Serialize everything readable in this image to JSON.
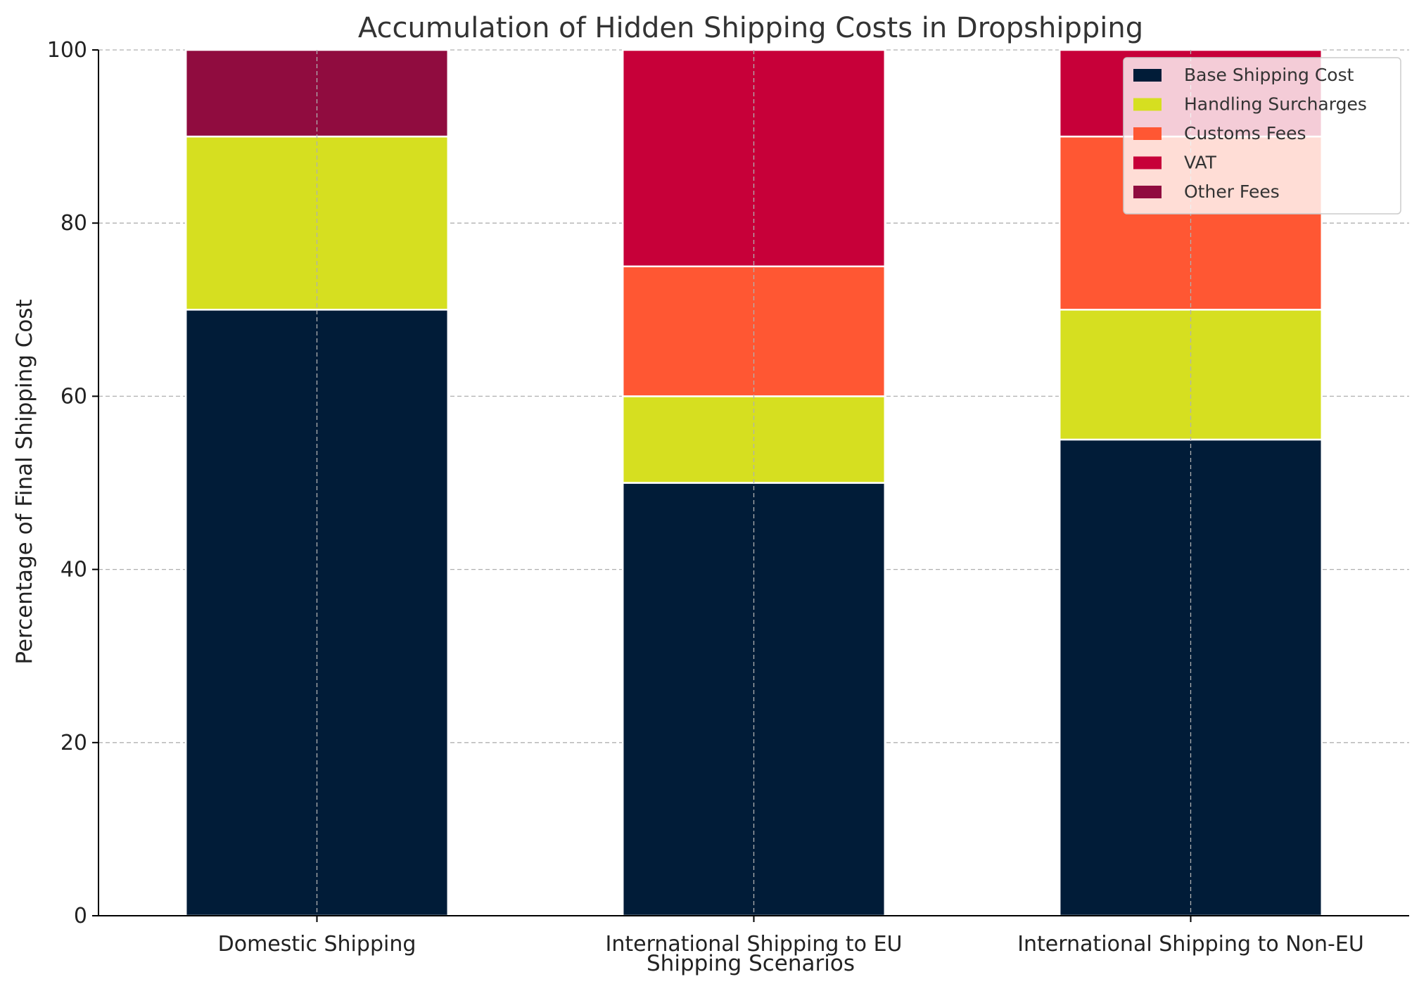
{
  "chart_data": {
    "type": "bar",
    "stacked": true,
    "title": "Accumulation of Hidden Shipping Costs in Dropshipping",
    "xlabel": "Shipping Scenarios",
    "ylabel": "Percentage of Final Shipping Cost",
    "ylim": [
      0,
      100
    ],
    "yticks": [
      0,
      20,
      40,
      60,
      80,
      100
    ],
    "grid": true,
    "legend_position": "top-right",
    "categories": [
      "Domestic Shipping",
      "International Shipping to EU",
      "International Shipping to Non-EU"
    ],
    "series": [
      {
        "name": "Base Shipping Cost",
        "color": "#011c38",
        "values": [
          70,
          50,
          55
        ]
      },
      {
        "name": "Handling Surcharges",
        "color": "#d6df20",
        "values": [
          20,
          10,
          15
        ]
      },
      {
        "name": "Customs Fees",
        "color": "#ff5733",
        "values": [
          0,
          15,
          20
        ]
      },
      {
        "name": "VAT",
        "color": "#c70039",
        "values": [
          0,
          25,
          10
        ]
      },
      {
        "name": "Other Fees",
        "color": "#900c3f",
        "values": [
          10,
          0,
          0
        ]
      }
    ]
  }
}
